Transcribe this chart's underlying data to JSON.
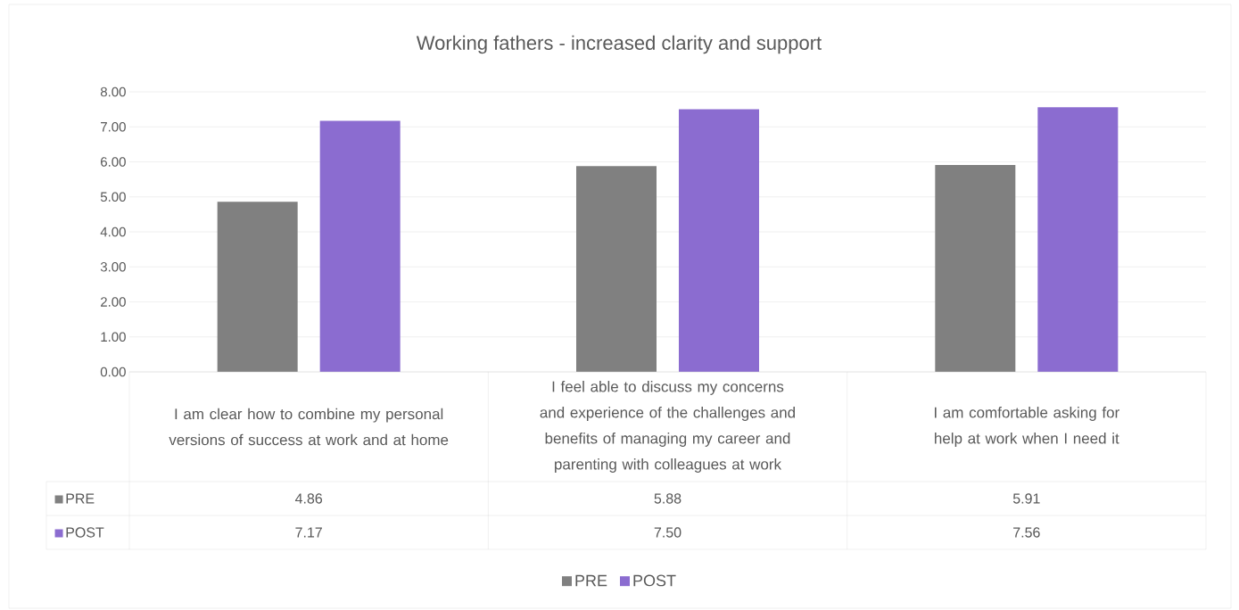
{
  "chart_data": {
    "type": "bar",
    "title": "Working fathers - increased clarity and support",
    "categories": [
      "I am clear how to combine my personal versions of success at work and at home",
      "I feel able to discuss my concerns and experience of the challenges and benefits of managing my career and parenting with colleagues at work",
      "I am comfortable asking for help at work when I need it"
    ],
    "series": [
      {
        "name": "PRE",
        "color": "#808080",
        "values": [
          4.86,
          5.88,
          5.91
        ],
        "value_labels": [
          "4.86",
          "5.88",
          "5.91"
        ]
      },
      {
        "name": "POST",
        "color": "#8b6cd0",
        "values": [
          7.17,
          7.5,
          7.56
        ],
        "value_labels": [
          "7.17",
          "7.50",
          "7.56"
        ]
      }
    ],
    "ylim": [
      0,
      8
    ],
    "yticks": [
      {
        "value": 0,
        "label": "0.00"
      },
      {
        "value": 1,
        "label": "1.00"
      },
      {
        "value": 2,
        "label": "2.00"
      },
      {
        "value": 3,
        "label": "3.00"
      },
      {
        "value": 4,
        "label": "4.00"
      },
      {
        "value": 5,
        "label": "5.00"
      },
      {
        "value": 6,
        "label": "6.00"
      },
      {
        "value": 7,
        "label": "7.00"
      },
      {
        "value": 8,
        "label": "8.00"
      }
    ],
    "grid": "y",
    "legend": "bottom"
  }
}
